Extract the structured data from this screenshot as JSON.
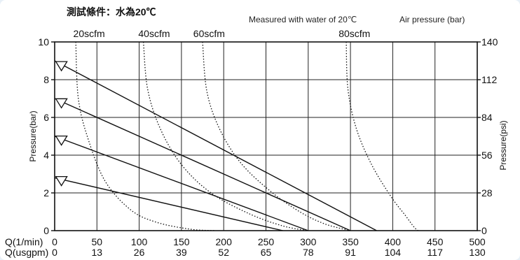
{
  "header": {
    "title_cn": "測試條件：水為20℃",
    "title_en": "Measured with water of 20℃",
    "air_label": "Air  pressure (bar)"
  },
  "chart_data": {
    "type": "line",
    "xlabel_lpm": "Q(1/min)",
    "xlabel_usgpm": "Q(usgpm)",
    "ylabel_left": "Pressure(bar)",
    "ylabel_right": "Pressure(psi)",
    "xlim": [
      0,
      500
    ],
    "ylim": [
      0,
      10
    ],
    "x_ticks_lpm": [
      "0",
      "50",
      "100",
      "150",
      "200",
      "250",
      "300",
      "350",
      "400",
      "450",
      "500"
    ],
    "x_ticks_usgpm": [
      "0",
      "13",
      "26",
      "39",
      "52",
      "65",
      "78",
      "91",
      "104",
      "117",
      "130"
    ],
    "y_ticks_bar": [
      "0",
      "2",
      "4",
      "6",
      "8",
      "10"
    ],
    "y_ticks_psi": [
      "0",
      "28",
      "56",
      "84",
      "112",
      "140"
    ],
    "grid": true,
    "air_pressure_lines": [
      {
        "air_bar": 9,
        "points": [
          [
            0,
            9
          ],
          [
            381,
            0
          ]
        ]
      },
      {
        "air_bar": 7,
        "points": [
          [
            0,
            7
          ],
          [
            350,
            0
          ]
        ]
      },
      {
        "air_bar": 5,
        "points": [
          [
            0,
            5
          ],
          [
            300,
            0
          ]
        ]
      },
      {
        "air_bar": 2.8,
        "points": [
          [
            0,
            2.8
          ],
          [
            270,
            0
          ]
        ]
      }
    ],
    "air_markers_x": 8,
    "air_consumption_curves": [
      {
        "label": "20scfm",
        "label_x": 22,
        "points": [
          [
            25,
            10
          ],
          [
            28,
            7
          ],
          [
            40,
            4.8
          ],
          [
            60,
            2.6
          ],
          [
            90,
            1.1
          ],
          [
            120,
            0.45
          ],
          [
            160,
            0.08
          ],
          [
            190,
            0
          ]
        ]
      },
      {
        "label": "40scfm",
        "label_x": 99,
        "points": [
          [
            105,
            10
          ],
          [
            110,
            7.5
          ],
          [
            125,
            5.4
          ],
          [
            150,
            3.5
          ],
          [
            185,
            2.0
          ],
          [
            230,
            0.9
          ],
          [
            270,
            0.25
          ],
          [
            300,
            0
          ]
        ]
      },
      {
        "label": "60scfm",
        "label_x": 164,
        "points": [
          [
            175,
            10
          ],
          [
            180,
            7.4
          ],
          [
            195,
            5.4
          ],
          [
            220,
            3.6
          ],
          [
            255,
            2.1
          ],
          [
            290,
            1.0
          ],
          [
            320,
            0.35
          ],
          [
            350,
            0
          ]
        ]
      },
      {
        "label": "80scfm",
        "label_x": 336,
        "points": [
          [
            345,
            10
          ],
          [
            347,
            7.5
          ],
          [
            357,
            5.4
          ],
          [
            375,
            3.5
          ],
          [
            398,
            1.8
          ],
          [
            415,
            0.8
          ],
          [
            425,
            0.2
          ],
          [
            430,
            0
          ]
        ]
      }
    ]
  }
}
